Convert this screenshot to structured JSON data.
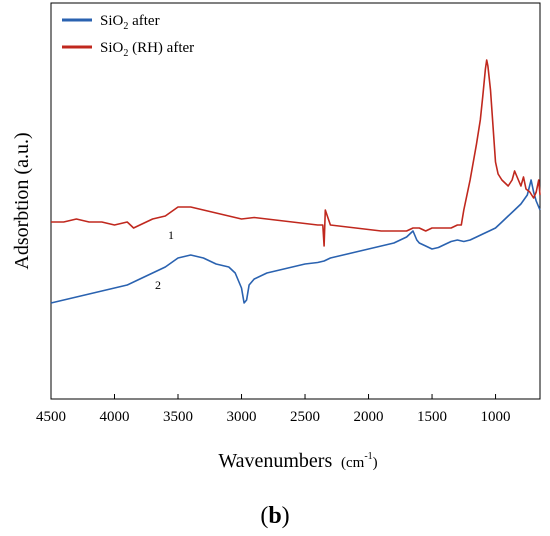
{
  "chart_data": {
    "type": "line",
    "xlabel": "Wavenumbers",
    "xlabel_unit_base": "cm",
    "xlabel_unit_exp": "-1",
    "ylabel": "Adsorbtion (a.u.)",
    "xlim": [
      4500,
      650
    ],
    "x_reversed": true,
    "ylim": [
      0,
      1
    ],
    "y_ticks_shown": false,
    "grid": false,
    "legend_position": "top-left",
    "xticks": [
      4500,
      4000,
      3500,
      3000,
      2500,
      2000,
      1500,
      1000
    ],
    "xtick_labels": [
      "4500",
      "4000",
      "3500",
      "3000",
      "2500",
      "2000",
      "1500",
      "1000"
    ],
    "series": [
      {
        "name": "SiO2 after",
        "legend_base": "SiO",
        "legend_sub": "2",
        "legend_tail": " after",
        "curve_label": "2",
        "color": "#2a62b0",
        "x": [
          4500,
          4400,
          4300,
          4200,
          4100,
          4000,
          3900,
          3800,
          3700,
          3600,
          3500,
          3400,
          3300,
          3200,
          3100,
          3050,
          3000,
          2980,
          2960,
          2940,
          2900,
          2800,
          2700,
          2600,
          2500,
          2400,
          2350,
          2300,
          2200,
          2100,
          2000,
          1900,
          1800,
          1700,
          1650,
          1620,
          1600,
          1550,
          1500,
          1450,
          1400,
          1350,
          1300,
          1250,
          1200,
          1150,
          1100,
          1050,
          1000,
          950,
          900,
          850,
          800,
          750,
          720,
          700,
          680,
          650
        ],
        "y": [
          0.19,
          0.2,
          0.21,
          0.22,
          0.23,
          0.24,
          0.25,
          0.27,
          0.29,
          0.31,
          0.34,
          0.35,
          0.34,
          0.32,
          0.31,
          0.29,
          0.24,
          0.19,
          0.2,
          0.25,
          0.27,
          0.29,
          0.3,
          0.31,
          0.32,
          0.325,
          0.33,
          0.34,
          0.35,
          0.36,
          0.37,
          0.38,
          0.39,
          0.41,
          0.43,
          0.4,
          0.39,
          0.38,
          0.37,
          0.375,
          0.385,
          0.395,
          0.4,
          0.395,
          0.4,
          0.41,
          0.42,
          0.43,
          0.44,
          0.46,
          0.48,
          0.5,
          0.52,
          0.55,
          0.6,
          0.56,
          0.53,
          0.5
        ]
      },
      {
        "name": "SiO2 (RH) after",
        "legend_base": "SiO",
        "legend_sub": "2",
        "legend_tail": " (RH) after",
        "curve_label": "1",
        "color": "#c0281e",
        "x": [
          4500,
          4400,
          4300,
          4200,
          4100,
          4000,
          3900,
          3850,
          3800,
          3700,
          3600,
          3500,
          3400,
          3300,
          3200,
          3100,
          3000,
          2900,
          2800,
          2700,
          2600,
          2500,
          2400,
          2360,
          2350,
          2340,
          2300,
          2200,
          2100,
          2000,
          1900,
          1800,
          1700,
          1650,
          1600,
          1550,
          1500,
          1450,
          1400,
          1350,
          1300,
          1270,
          1250,
          1200,
          1150,
          1120,
          1100,
          1080,
          1070,
          1060,
          1040,
          1020,
          1000,
          980,
          950,
          900,
          870,
          850,
          800,
          780,
          760,
          730,
          700,
          680,
          660,
          650
        ],
        "y": [
          0.46,
          0.46,
          0.47,
          0.46,
          0.46,
          0.45,
          0.46,
          0.44,
          0.45,
          0.47,
          0.48,
          0.51,
          0.51,
          0.5,
          0.49,
          0.48,
          0.47,
          0.475,
          0.47,
          0.465,
          0.46,
          0.455,
          0.45,
          0.45,
          0.38,
          0.5,
          0.45,
          0.445,
          0.44,
          0.435,
          0.43,
          0.43,
          0.43,
          0.44,
          0.44,
          0.43,
          0.44,
          0.44,
          0.44,
          0.44,
          0.45,
          0.45,
          0.5,
          0.6,
          0.72,
          0.8,
          0.88,
          0.97,
          1.0,
          0.98,
          0.9,
          0.78,
          0.66,
          0.62,
          0.6,
          0.58,
          0.6,
          0.63,
          0.58,
          0.61,
          0.57,
          0.56,
          0.54,
          0.56,
          0.6,
          0.55
        ]
      }
    ],
    "panel_label": "(b)",
    "panel_label_bold": "b"
  }
}
